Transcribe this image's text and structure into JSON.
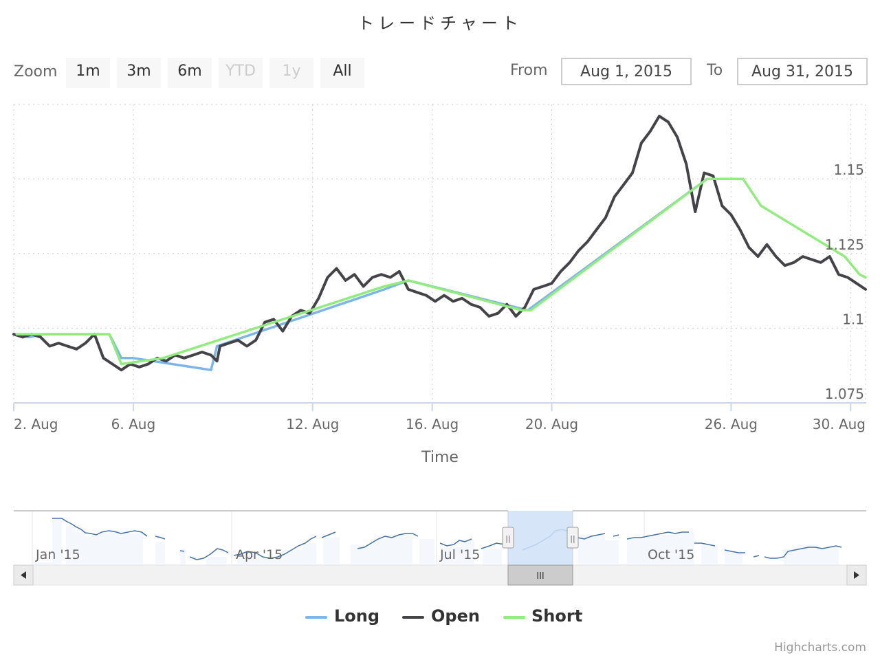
{
  "title": "トレードチャート",
  "range_selector": {
    "zoom_label": "Zoom",
    "buttons": [
      {
        "label": "1m",
        "enabled": true
      },
      {
        "label": "3m",
        "enabled": true
      },
      {
        "label": "6m",
        "enabled": true
      },
      {
        "label": "YTD",
        "enabled": false
      },
      {
        "label": "1y",
        "enabled": false
      },
      {
        "label": "All",
        "enabled": true
      }
    ],
    "from_label": "From",
    "from_value": "Aug 1, 2015",
    "to_label": "To",
    "to_value": "Aug 31, 2015"
  },
  "colors": {
    "long": "#7cb5ec",
    "open": "#434348",
    "short": "#90ed7d",
    "navigator_fill": "#cfe2f7",
    "navigator_line": "#4572a7"
  },
  "navigator": {
    "labels": [
      "Jan '15",
      "Apr '15",
      "Jul '15",
      "Oct '15"
    ],
    "scrollbar_grip": "III",
    "handle_glyph": "||"
  },
  "legend": {
    "items": [
      {
        "label": "Long"
      },
      {
        "label": "Open"
      },
      {
        "label": "Short"
      }
    ]
  },
  "credits": "Highcharts.com",
  "chart_data": {
    "type": "line",
    "title": "トレードチャート",
    "xlabel": "Time",
    "ylabel": "",
    "x_ticks": [
      {
        "day": 2,
        "label": "2. Aug"
      },
      {
        "day": 6,
        "label": "6. Aug"
      },
      {
        "day": 12,
        "label": "12. Aug"
      },
      {
        "day": 16,
        "label": "16. Aug"
      },
      {
        "day": 20,
        "label": "20. Aug"
      },
      {
        "day": 26,
        "label": "26. Aug"
      },
      {
        "day": 30,
        "label": "30. Aug"
      }
    ],
    "y_ticks": [
      {
        "value": 1.075,
        "label": "1.075"
      },
      {
        "value": 1.1,
        "label": "1.1"
      },
      {
        "value": 1.125,
        "label": "1.125"
      },
      {
        "value": 1.15,
        "label": "1.15"
      }
    ],
    "xlim": [
      2,
      30.5
    ],
    "ylim": [
      1.075,
      1.1749
    ],
    "grid": true,
    "legend_position": "bottom",
    "series": [
      {
        "name": "Open",
        "key": "open",
        "x": [
          2.0,
          2.3,
          2.6,
          2.9,
          3.2,
          3.5,
          3.8,
          4.1,
          4.4,
          4.7,
          5.0,
          5.3,
          5.6,
          5.9,
          6.2,
          6.5,
          6.8,
          7.1,
          7.4,
          7.7,
          8.0,
          8.3,
          8.6,
          8.8,
          8.9,
          9.2,
          9.5,
          9.8,
          10.1,
          10.4,
          10.7,
          11.0,
          11.3,
          11.6,
          11.9,
          12.2,
          12.5,
          12.8,
          13.1,
          13.4,
          13.7,
          14.0,
          14.3,
          14.6,
          14.9,
          15.2,
          15.5,
          15.8,
          16.1,
          16.4,
          16.7,
          17.0,
          17.3,
          17.6,
          17.9,
          18.2,
          18.5,
          18.8,
          19.1,
          19.4,
          19.7,
          20.0,
          20.3,
          20.6,
          20.9,
          21.2,
          21.5,
          21.8,
          22.1,
          22.4,
          22.7,
          23.0,
          23.3,
          23.6,
          23.9,
          24.2,
          24.5,
          24.8,
          25.1,
          25.4,
          25.7,
          26.0,
          26.3,
          26.6,
          26.9,
          27.2,
          27.5,
          27.8,
          28.1,
          28.4,
          28.7,
          29.0,
          29.3,
          29.6,
          29.9,
          30.2,
          30.5
        ],
        "y": [
          1.098,
          1.097,
          1.098,
          1.097,
          1.094,
          1.095,
          1.094,
          1.093,
          1.095,
          1.098,
          1.09,
          1.088,
          1.086,
          1.088,
          1.087,
          1.088,
          1.09,
          1.089,
          1.091,
          1.09,
          1.091,
          1.092,
          1.091,
          1.089,
          1.094,
          1.095,
          1.096,
          1.094,
          1.096,
          1.102,
          1.103,
          1.099,
          1.104,
          1.106,
          1.105,
          1.11,
          1.117,
          1.12,
          1.116,
          1.118,
          1.114,
          1.117,
          1.118,
          1.117,
          1.119,
          1.113,
          1.112,
          1.111,
          1.109,
          1.111,
          1.109,
          1.11,
          1.108,
          1.107,
          1.104,
          1.105,
          1.108,
          1.104,
          1.107,
          1.113,
          1.114,
          1.115,
          1.119,
          1.122,
          1.126,
          1.129,
          1.133,
          1.137,
          1.144,
          1.148,
          1.152,
          1.162,
          1.166,
          1.171,
          1.169,
          1.164,
          1.155,
          1.139,
          1.152,
          1.151,
          1.141,
          1.138,
          1.133,
          1.127,
          1.124,
          1.128,
          1.124,
          1.121,
          1.122,
          1.124,
          1.123,
          1.122,
          1.124,
          1.118,
          1.117,
          1.115,
          1.113
        ]
      },
      {
        "name": "Long",
        "key": "long",
        "x": [
          2.0,
          2.5,
          3.0,
          5.2,
          5.6,
          6.0,
          8.6,
          8.8,
          14.4,
          15.2,
          19.2,
          25.2,
          26.4
        ],
        "y": [
          1.098,
          1.097,
          1.098,
          1.098,
          1.09,
          1.09,
          1.086,
          1.094,
          1.113,
          1.116,
          1.106,
          1.15,
          1.15
        ]
      },
      {
        "name": "Short",
        "key": "short",
        "x": [
          2.1,
          5.2,
          5.6,
          7.0,
          14.4,
          15.2,
          19.0,
          19.3,
          25.2,
          26.4,
          27.0,
          29.8,
          30.3,
          30.5
        ],
        "y": [
          1.098,
          1.098,
          1.088,
          1.09,
          1.114,
          1.116,
          1.106,
          1.106,
          1.15,
          1.15,
          1.141,
          1.124,
          1.118,
          1.117
        ]
      }
    ]
  }
}
